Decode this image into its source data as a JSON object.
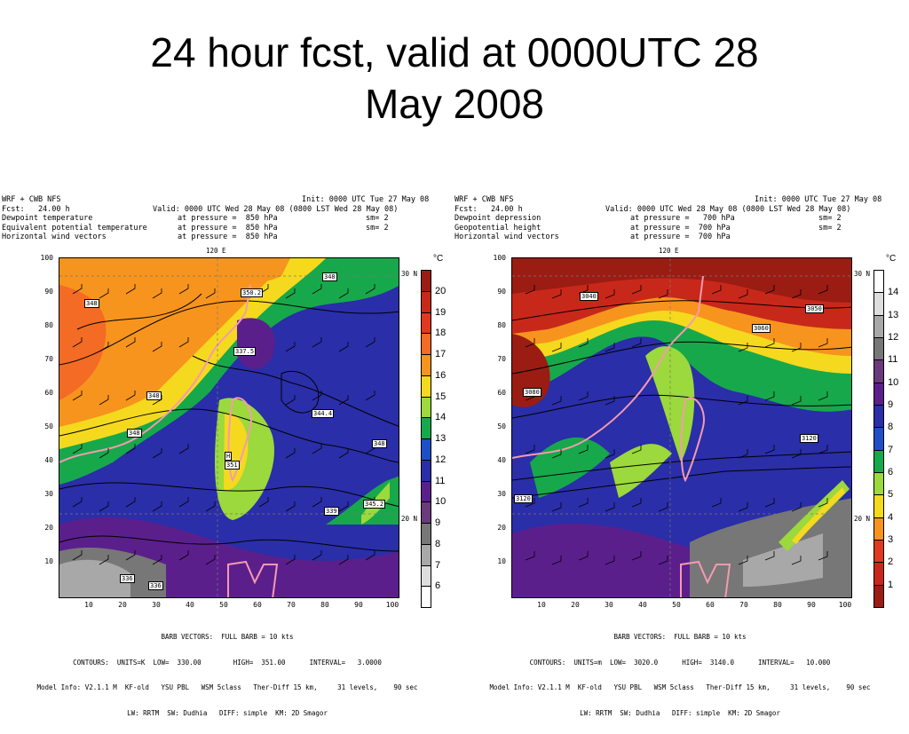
{
  "slide": {
    "title_line1": "24 hour fcst, valid at 0000UTC 28",
    "title_line2": "May 2008"
  },
  "panels": [
    {
      "header": {
        "model": "WRF + CWB NFS",
        "init": "Init: 0000 UTC Tue 27 May 08",
        "fcst": "Fcst:   24.00 h",
        "valid": "Valid: 0000 UTC Wed 28 May 08 (0800 LST Wed 28 May 08)",
        "field1_name": "Dewpoint temperature",
        "field1_level": "at pressure =  850 hPa",
        "field1_sm": "sm= 2",
        "field2_name": "Equivalent potential temperature",
        "field2_level": "at pressure =  850 hPa",
        "field2_sm": "sm= 2",
        "field3_name": "Horizontal wind vectors",
        "field3_level": "at pressure =  850 hPa"
      },
      "colorbar": {
        "unit": "°C",
        "labels": [
          "20",
          "19",
          "18",
          "17",
          "16",
          "15",
          "14",
          "13",
          "12",
          "11",
          "10",
          "9",
          "8",
          "7",
          "6"
        ],
        "colors": [
          "#9b1c13",
          "#c8281a",
          "#e0391f",
          "#f36b24",
          "#f7941d",
          "#f5d91e",
          "#9bd93c",
          "#17a84b",
          "#1f4fc8",
          "#2a2ea8",
          "#5b1f8c",
          "#6a3a7c",
          "#777777",
          "#a8a8a8",
          "#dddddd",
          "#ffffff"
        ]
      },
      "contour_labels": [
        "348",
        "350.2",
        "348",
        "337.5",
        "348",
        "348",
        "344.4",
        "348",
        "H",
        "351",
        "345.2",
        "339",
        "336",
        "336"
      ],
      "footer": {
        "line1": "BARB VECTORS:  FULL BARB = 10 kts",
        "line2": "CONTOURS:  UNITS=K  LOW=  330.00        HIGH=  351.00      INTERVAL=   3.0000",
        "line3": "Model Info: V2.1.1 M  KF-old   YSU PBL   WSM 5class   Ther-Diff 15 km,     31 levels,    90 sec",
        "line4": "LW: RRTM  SW: Dudhia   DIFF: simple  KM: 2D Smagor"
      }
    },
    {
      "header": {
        "model": "WRF + CWB NFS",
        "init": "Init: 0000 UTC Tue 27 May 08",
        "fcst": "Fcst:   24.00 h",
        "valid": "Valid: 0000 UTC Wed 28 May 08 (0800 LST Wed 28 May 08)",
        "field1_name": "Dewpoint depression",
        "field1_level": "at pressure =   700 hPa",
        "field1_sm": "sm= 2",
        "field2_name": "Geopotential height",
        "field2_level": "at pressure =  700 hPa",
        "field2_sm": "sm= 2",
        "field3_name": "Horizontal wind vectors",
        "field3_level": "at pressure =  700 hPa"
      },
      "colorbar": {
        "unit": "°C",
        "labels": [
          "14",
          "13",
          "12",
          "11",
          "10",
          "9",
          "8",
          "7",
          "6",
          "5",
          "4",
          "3",
          "2",
          "1"
        ],
        "colors": [
          "#ffffff",
          "#dddddd",
          "#a8a8a8",
          "#777777",
          "#6a3a7c",
          "#5b1f8c",
          "#2a2ea8",
          "#1f4fc8",
          "#17a84b",
          "#9bd93c",
          "#f5d91e",
          "#f7941d",
          "#e0391f",
          "#c8281a",
          "#9b1c13"
        ]
      },
      "contour_labels": [
        "3040",
        "3050",
        "3060",
        "3080",
        "3120",
        "3120"
      ],
      "footer": {
        "line1": "BARB VECTORS:  FULL BARB = 10 kts",
        "line2": "CONTOURS:  UNITS=m  LOW=  3020.0      HIGH=  3140.0      INTERVAL=   10.000",
        "line3": "Model Info: V2.1.1 M  KF-old   YSU PBL   WSM 5class   Ther-Diff 15 km,     31 levels,    90 sec",
        "line4": "LW: RRTM  SW: Dudhia   DIFF: simple  KM: 2D Smagor"
      }
    }
  ],
  "axes": {
    "x_ticks": [
      "10",
      "20",
      "30",
      "40",
      "50",
      "60",
      "70",
      "80",
      "90",
      "100"
    ],
    "y_ticks": [
      "100",
      "90",
      "80",
      "70",
      "60",
      "50",
      "40",
      "30",
      "20",
      "10"
    ],
    "lon_label": "120 E",
    "lat_top": "30 N",
    "lat_bottom": "20 N"
  }
}
